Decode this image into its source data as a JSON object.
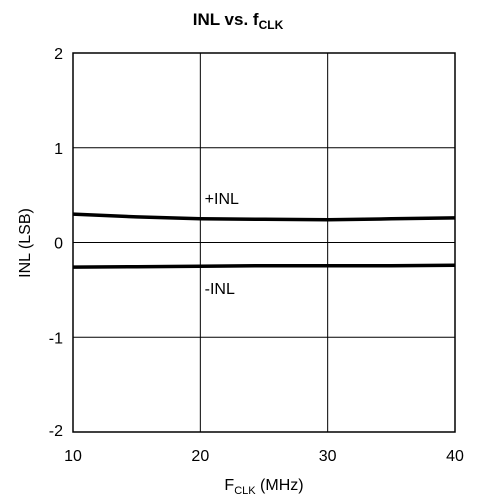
{
  "chart_data": {
    "type": "line",
    "title": {
      "main": "INL vs. f",
      "sub": "CLK"
    },
    "xlabel": {
      "main": "F",
      "sub": "CLK",
      "suffix": " (MHz)"
    },
    "ylabel": "INL (LSB)",
    "xlim": [
      10,
      40
    ],
    "ylim": [
      -2,
      2
    ],
    "xticks": [
      10,
      20,
      30,
      40
    ],
    "yticks": [
      -2,
      -1,
      0,
      1,
      2
    ],
    "ytick_labels": [
      "-2",
      "-1",
      "0",
      "1",
      "2"
    ],
    "grid": true,
    "series": [
      {
        "name": "+INL",
        "x": [
          10,
          15,
          20,
          25,
          30,
          35,
          40
        ],
        "values": [
          0.3,
          0.27,
          0.25,
          0.245,
          0.24,
          0.25,
          0.26
        ]
      },
      {
        "name": "-INL",
        "x": [
          10,
          15,
          20,
          25,
          30,
          35,
          40
        ],
        "values": [
          -0.26,
          -0.255,
          -0.25,
          -0.245,
          -0.245,
          -0.245,
          -0.24
        ]
      }
    ],
    "line_color": "#000000"
  }
}
